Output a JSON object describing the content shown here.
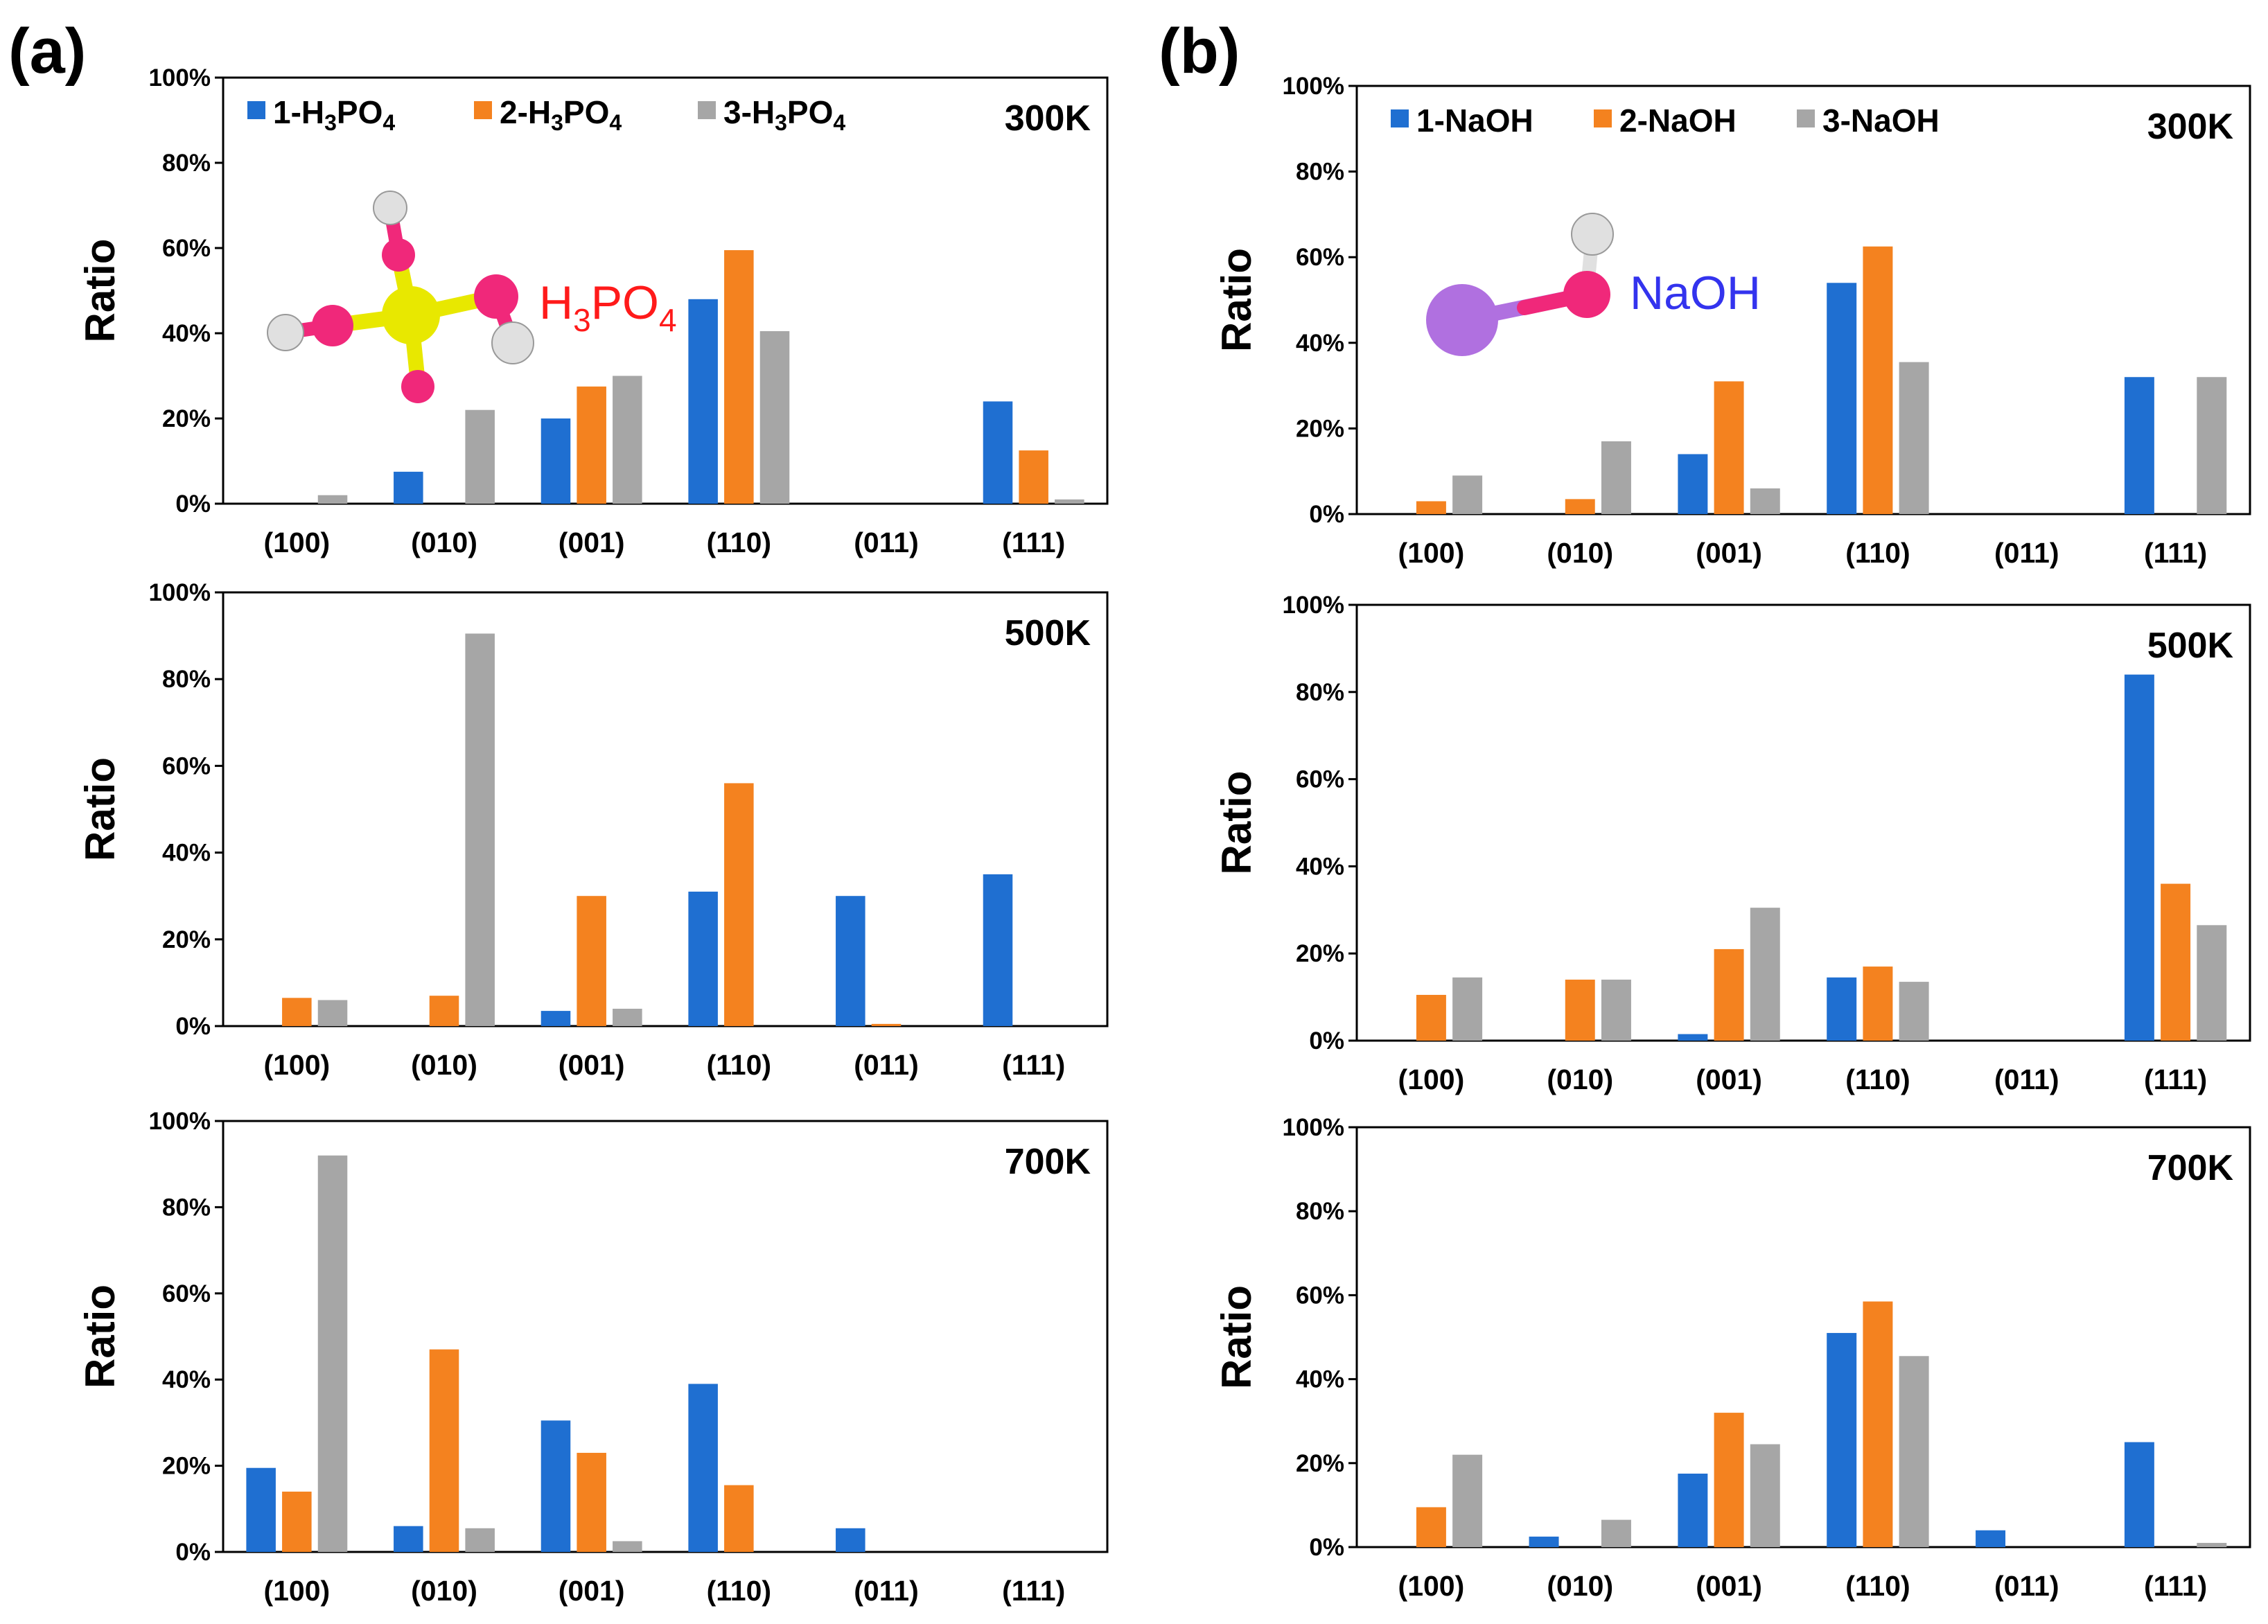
{
  "panels": [
    {
      "label": "(a)",
      "molecule": {
        "label_main": "H",
        "label_sub1": "3",
        "label_mid": "PO",
        "label_sub2": "4",
        "color": "#ff1a1a"
      },
      "legend": [
        {
          "main": "1-H",
          "sub1": "3",
          "mid": "PO",
          "sub2": "4",
          "color": "#1f6fd1"
        },
        {
          "main": "2-H",
          "sub1": "3",
          "mid": "PO",
          "sub2": "4",
          "color": "#f4821f"
        },
        {
          "main": "3-H",
          "sub1": "3",
          "mid": "PO",
          "sub2": "4",
          "color": "#a6a6a6"
        }
      ]
    },
    {
      "label": "(b)",
      "molecule": {
        "label_main": "NaOH",
        "label_sub1": "",
        "label_mid": "",
        "label_sub2": "",
        "color": "#3333ee"
      },
      "legend": [
        {
          "main": "1-NaOH",
          "sub1": "",
          "mid": "",
          "sub2": "",
          "color": "#1f6fd1"
        },
        {
          "main": "2-NaOH",
          "sub1": "",
          "mid": "",
          "sub2": "",
          "color": "#f4821f"
        },
        {
          "main": "3-NaOH",
          "sub1": "",
          "mid": "",
          "sub2": "",
          "color": "#a6a6a6"
        }
      ]
    }
  ],
  "chart_data": [
    {
      "type": "bar",
      "panel": "a",
      "temperature": "300K",
      "ylabel": "Ratio",
      "ylim": [
        0,
        100
      ],
      "yticks": [
        "0%",
        "20%",
        "40%",
        "60%",
        "80%",
        "100%"
      ],
      "categories": [
        "(100)",
        "(010)",
        "(001)",
        "(110)",
        "(011)",
        "(111)"
      ],
      "series": [
        {
          "name": "1-H3PO4",
          "values": [
            0,
            7.5,
            20,
            48,
            0,
            24
          ]
        },
        {
          "name": "2-H3PO4",
          "values": [
            0,
            0,
            27.5,
            59.5,
            0,
            12.5
          ]
        },
        {
          "name": "3-H3PO4",
          "values": [
            2,
            22,
            30,
            40.5,
            0,
            1
          ]
        }
      ]
    },
    {
      "type": "bar",
      "panel": "a",
      "temperature": "500K",
      "ylabel": "Ratio",
      "ylim": [
        0,
        100
      ],
      "yticks": [
        "0%",
        "20%",
        "40%",
        "60%",
        "80%",
        "100%"
      ],
      "categories": [
        "(100)",
        "(010)",
        "(001)",
        "(110)",
        "(011)",
        "(111)"
      ],
      "series": [
        {
          "name": "1-H3PO4",
          "values": [
            0,
            0,
            3.5,
            31,
            30,
            35
          ]
        },
        {
          "name": "2-H3PO4",
          "values": [
            6.5,
            7,
            30,
            56,
            0.5,
            0
          ]
        },
        {
          "name": "3-H3PO4",
          "values": [
            6,
            90.5,
            4,
            0,
            0,
            0
          ]
        }
      ]
    },
    {
      "type": "bar",
      "panel": "a",
      "temperature": "700K",
      "ylabel": "Ratio",
      "ylim": [
        0,
        100
      ],
      "yticks": [
        "0%",
        "20%",
        "40%",
        "60%",
        "80%",
        "100%"
      ],
      "categories": [
        "(100)",
        "(010)",
        "(001)",
        "(110)",
        "(011)",
        "(111)"
      ],
      "series": [
        {
          "name": "1-H3PO4",
          "values": [
            19.5,
            6,
            30.5,
            39,
            5.5,
            0
          ]
        },
        {
          "name": "2-H3PO4",
          "values": [
            14,
            47,
            23,
            15.5,
            0,
            0
          ]
        },
        {
          "name": "3-H3PO4",
          "values": [
            92,
            5.5,
            2.5,
            0,
            0,
            0
          ]
        }
      ]
    },
    {
      "type": "bar",
      "panel": "b",
      "temperature": "300K",
      "ylabel": "Ratio",
      "ylim": [
        0,
        100
      ],
      "yticks": [
        "0%",
        "20%",
        "40%",
        "60%",
        "80%",
        "100%"
      ],
      "categories": [
        "(100)",
        "(010)",
        "(001)",
        "(110)",
        "(011)",
        "(111)"
      ],
      "series": [
        {
          "name": "1-NaOH",
          "values": [
            0,
            0,
            14,
            54,
            0,
            32
          ]
        },
        {
          "name": "2-NaOH",
          "values": [
            3,
            3.5,
            31,
            62.5,
            0,
            0
          ]
        },
        {
          "name": "3-NaOH",
          "values": [
            9,
            17,
            6,
            35.5,
            0,
            32
          ]
        }
      ]
    },
    {
      "type": "bar",
      "panel": "b",
      "temperature": "500K",
      "ylabel": "Ratio",
      "ylim": [
        0,
        100
      ],
      "yticks": [
        "0%",
        "20%",
        "40%",
        "60%",
        "80%",
        "100%"
      ],
      "categories": [
        "(100)",
        "(010)",
        "(001)",
        "(110)",
        "(011)",
        "(111)"
      ],
      "series": [
        {
          "name": "1-NaOH",
          "values": [
            0,
            0,
            1.5,
            14.5,
            0,
            84
          ]
        },
        {
          "name": "2-NaOH",
          "values": [
            10.5,
            14,
            21,
            17,
            0,
            36
          ]
        },
        {
          "name": "3-NaOH",
          "values": [
            14.5,
            14,
            30.5,
            13.5,
            0,
            26.5
          ]
        }
      ]
    },
    {
      "type": "bar",
      "panel": "b",
      "temperature": "700K",
      "ylabel": "Ratio",
      "ylim": [
        0,
        100
      ],
      "yticks": [
        "0%",
        "20%",
        "40%",
        "60%",
        "80%",
        "100%"
      ],
      "categories": [
        "(100)",
        "(010)",
        "(001)",
        "(110)",
        "(011)",
        "(111)"
      ],
      "series": [
        {
          "name": "1-NaOH",
          "values": [
            0,
            2.5,
            17.5,
            51,
            4,
            25
          ]
        },
        {
          "name": "2-NaOH",
          "values": [
            9.5,
            0,
            32,
            58.5,
            0,
            0
          ]
        },
        {
          "name": "3-NaOH",
          "values": [
            22,
            6.5,
            24.5,
            45.5,
            0,
            1
          ]
        }
      ]
    }
  ],
  "colors": {
    "series1": "#1f6fd1",
    "series2": "#f4821f",
    "series3": "#a6a6a6",
    "oxygen": "#f0287a",
    "phosphorus": "#e8e800",
    "hydrogen": "#e0e0e0",
    "sodium": "#b070e0"
  }
}
